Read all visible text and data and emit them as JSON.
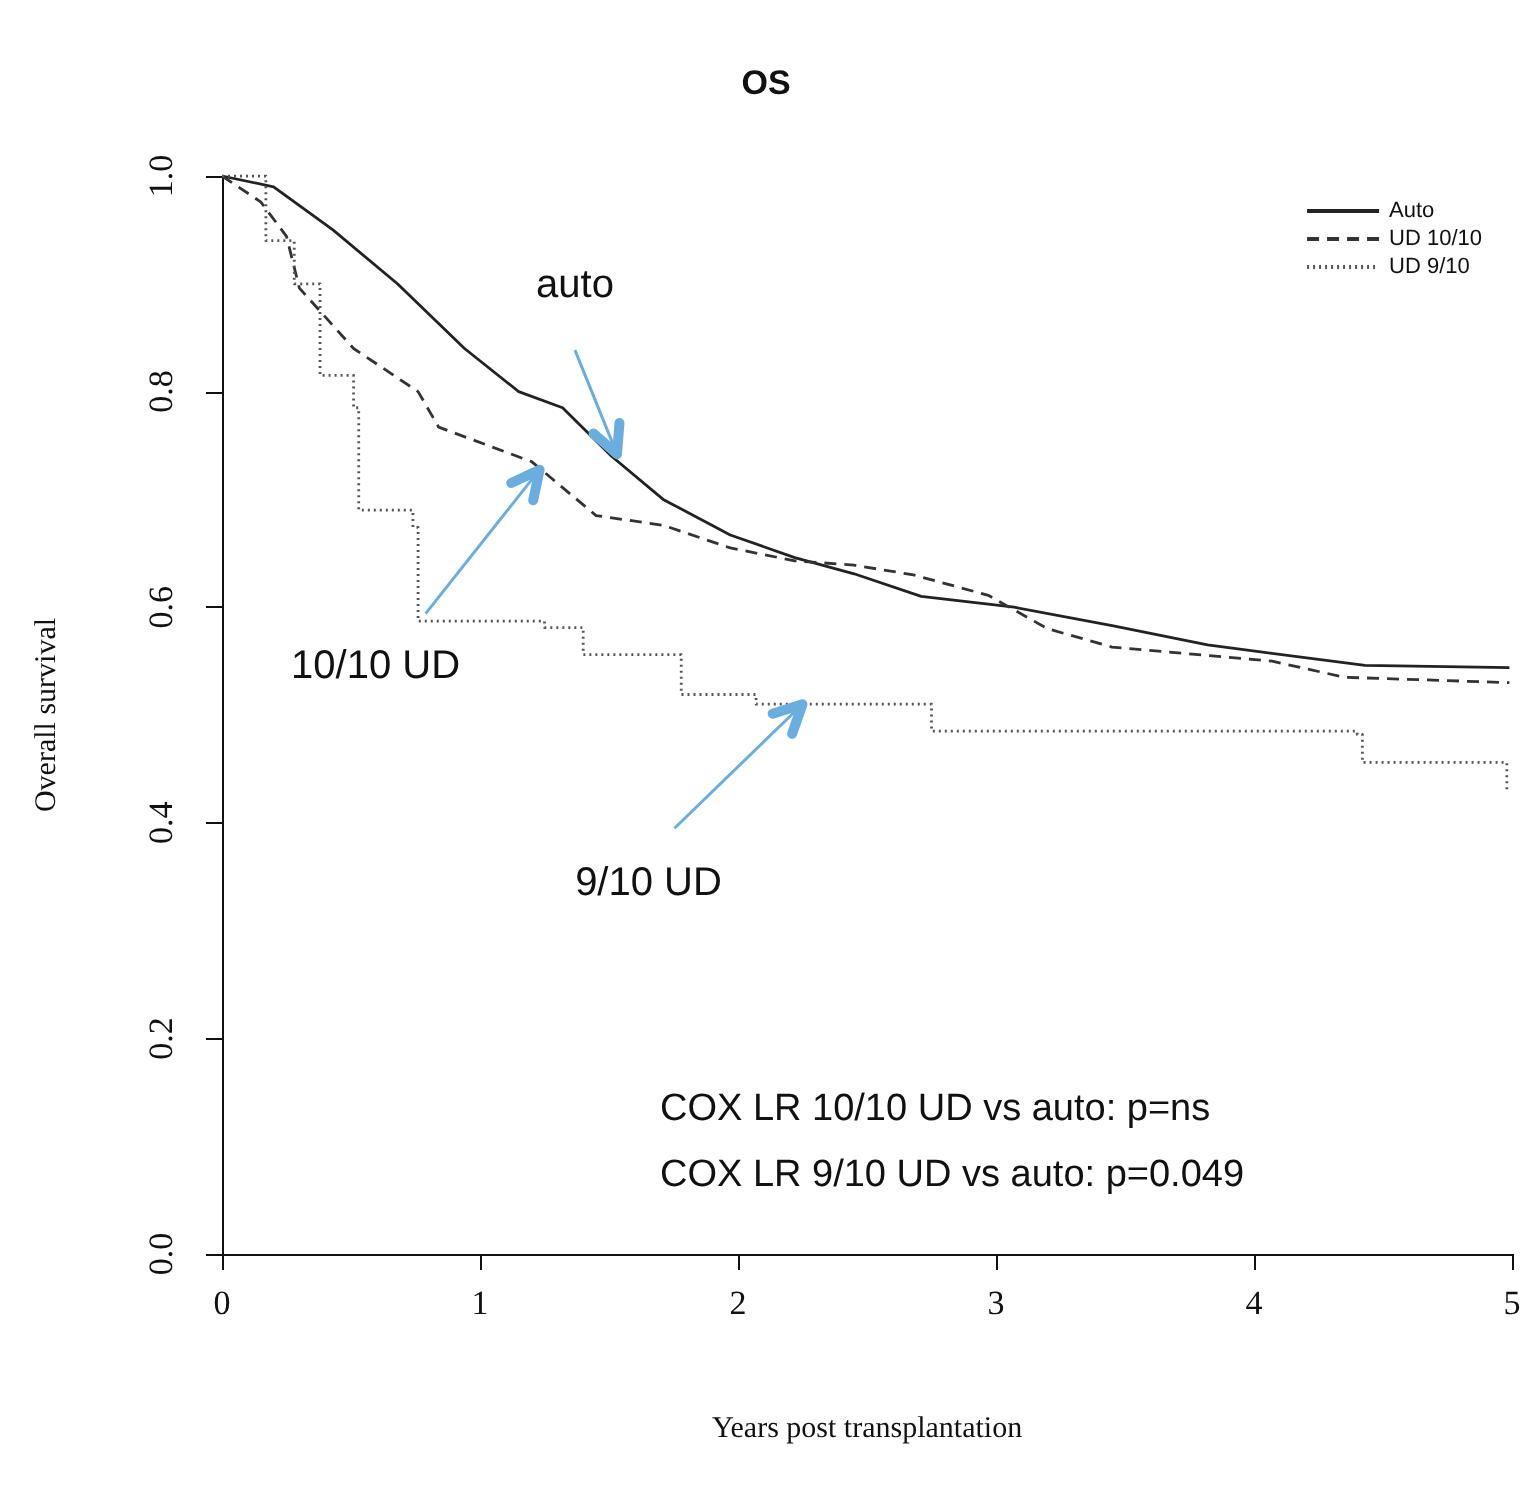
{
  "chart_data": {
    "type": "step",
    "title": "OS",
    "xlabel": "Years post transplantation",
    "ylabel": "Overall survival",
    "xlim": [
      0,
      5
    ],
    "xticks": [
      0,
      1,
      2,
      3,
      4,
      5
    ],
    "ylim": [
      0,
      1
    ],
    "yticks": [
      {
        "value": 0,
        "label": "0.0"
      },
      0.2,
      0.4,
      0.6,
      0.8,
      {
        "value": 1,
        "label": "1.0"
      }
    ],
    "grid": false,
    "legend": "top right",
    "marker": "none",
    "series": [
      {
        "name": "Auto",
        "type": "line",
        "color": "#222222",
        "line_style": "solid",
        "x": [
          0,
          0.2,
          0.43,
          0.68,
          0.94,
          1.15,
          1.32,
          1.51,
          1.71,
          1.97,
          2.22,
          2.45,
          2.71,
          3.07,
          3.45,
          3.82,
          4.43,
          4.99
        ],
        "values": [
          1,
          0.99,
          0.95,
          0.9,
          0.84,
          0.8,
          0.785,
          0.74,
          0.7,
          0.667,
          0.646,
          0.631,
          0.61,
          0.6,
          0.583,
          0.565,
          0.546,
          0.544
        ]
      },
      {
        "name": "UD 10/10",
        "type": "line",
        "color": "#333333",
        "line_style": "dashed",
        "x": [
          0,
          0.15,
          0.25,
          0.3,
          0.51,
          0.76,
          0.84,
          1.2,
          1.45,
          1.71,
          1.97,
          2.22,
          2.45,
          2.68,
          2.97,
          3.2,
          3.45,
          4.07,
          4.35,
          4.99
        ],
        "values": [
          1,
          0.976,
          0.944,
          0.896,
          0.84,
          0.8,
          0.767,
          0.735,
          0.685,
          0.676,
          0.655,
          0.643,
          0.639,
          0.63,
          0.611,
          0.58,
          0.563,
          0.55,
          0.535,
          0.53
        ]
      },
      {
        "name": "UD 9/10",
        "color": "#555555",
        "line_style": "dotted",
        "x": [
          0,
          0.17,
          0.28,
          0.38,
          0.38,
          0.51,
          0.53,
          0.74,
          0.76,
          1.25,
          1.4,
          1.78,
          2.07,
          2.75,
          2.75,
          4.4,
          4.42,
          4.95,
          4.98
        ],
        "values": [
          1,
          0.94,
          0.9,
          0.883,
          0.815,
          0.785,
          0.69,
          0.674,
          0.587,
          0.581,
          0.556,
          0.519,
          0.51,
          0.51,
          0.485,
          0.482,
          0.456,
          0.456,
          0.43
        ]
      }
    ],
    "annotations": [
      {
        "text": "auto",
        "x": 1.5,
        "y": 0.742
      },
      {
        "text": "10/10 UD",
        "x": 1.2,
        "y": 0.735
      },
      {
        "text": "9/10 UD",
        "x": 2.25,
        "y": 0.51
      },
      "COX LR 10/10 UD vs auto: p=ns",
      "COX LR 9/10 UD vs auto: p=0.049"
    ]
  }
}
